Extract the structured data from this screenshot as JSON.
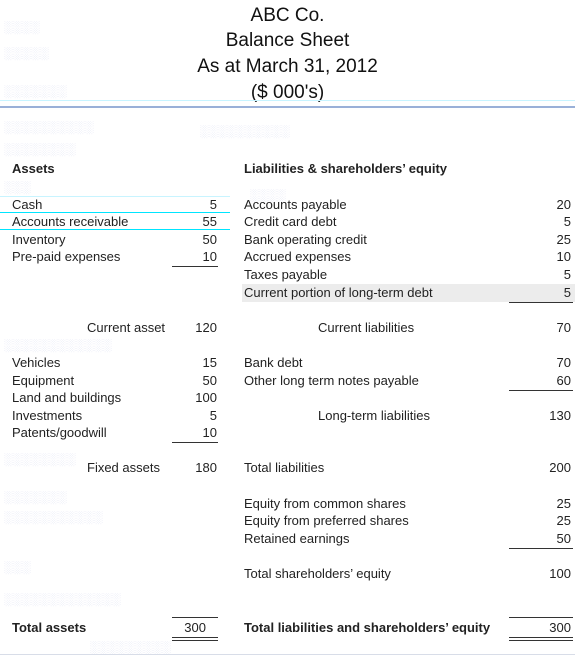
{
  "header": {
    "company": "ABC Co.",
    "statement": "Balance Sheet",
    "date": "As at March 31, 2012",
    "units": "($ 000's)"
  },
  "assets": {
    "heading": "Assets",
    "current_items": [
      {
        "label": "Cash",
        "value": "5"
      },
      {
        "label": "Accounts receivable",
        "value": "55"
      },
      {
        "label": "Inventory",
        "value": "50"
      },
      {
        "label": "Pre-paid expenses",
        "value": "10"
      }
    ],
    "current_total_label": "Current asset",
    "current_total_value": "120",
    "fixed_items": [
      {
        "label": "Vehicles",
        "value": "15"
      },
      {
        "label": "Equipment",
        "value": "50"
      },
      {
        "label": "Land and buildings",
        "value": "100"
      },
      {
        "label": "Investments",
        "value": "5"
      },
      {
        "label": "Patents/goodwill",
        "value": "10"
      }
    ],
    "fixed_total_label": "Fixed assets",
    "fixed_total_value": "180",
    "total_label": "Total assets",
    "total_value": "300"
  },
  "liabilities": {
    "heading": "Liabilities & shareholders’ equity",
    "current_items": [
      {
        "label": "Accounts payable",
        "value": "20"
      },
      {
        "label": "Credit card debt",
        "value": "5"
      },
      {
        "label": "Bank operating credit",
        "value": "25"
      },
      {
        "label": "Accrued expenses",
        "value": "10"
      },
      {
        "label": "Taxes payable",
        "value": "5"
      },
      {
        "label": "Current portion of long-term debt",
        "value": "5"
      }
    ],
    "current_total_label": "Current liabilities",
    "current_total_value": "70",
    "long_term_items": [
      {
        "label": "Bank debt",
        "value": "70"
      },
      {
        "label": "Other long term notes payable",
        "value": "60"
      }
    ],
    "long_term_total_label": "Long-term liabilities",
    "long_term_total_value": "130",
    "total_liabilities_label": "Total liabilities",
    "total_liabilities_value": "200"
  },
  "equity": {
    "items": [
      {
        "label": "Equity from common shares",
        "value": "25"
      },
      {
        "label": "Equity from preferred shares",
        "value": "25"
      },
      {
        "label": "Retained earnings",
        "value": "50"
      }
    ],
    "total_label": "Total shareholders’ equity",
    "total_value": "100",
    "grand_total_label": "Total liabilities and shareholders’ equity",
    "grand_total_value": "300"
  },
  "colors": {
    "cyan_band": "#00e5ff",
    "highlight_row": "#ececec",
    "ghost_text": "#dfe3f3"
  }
}
